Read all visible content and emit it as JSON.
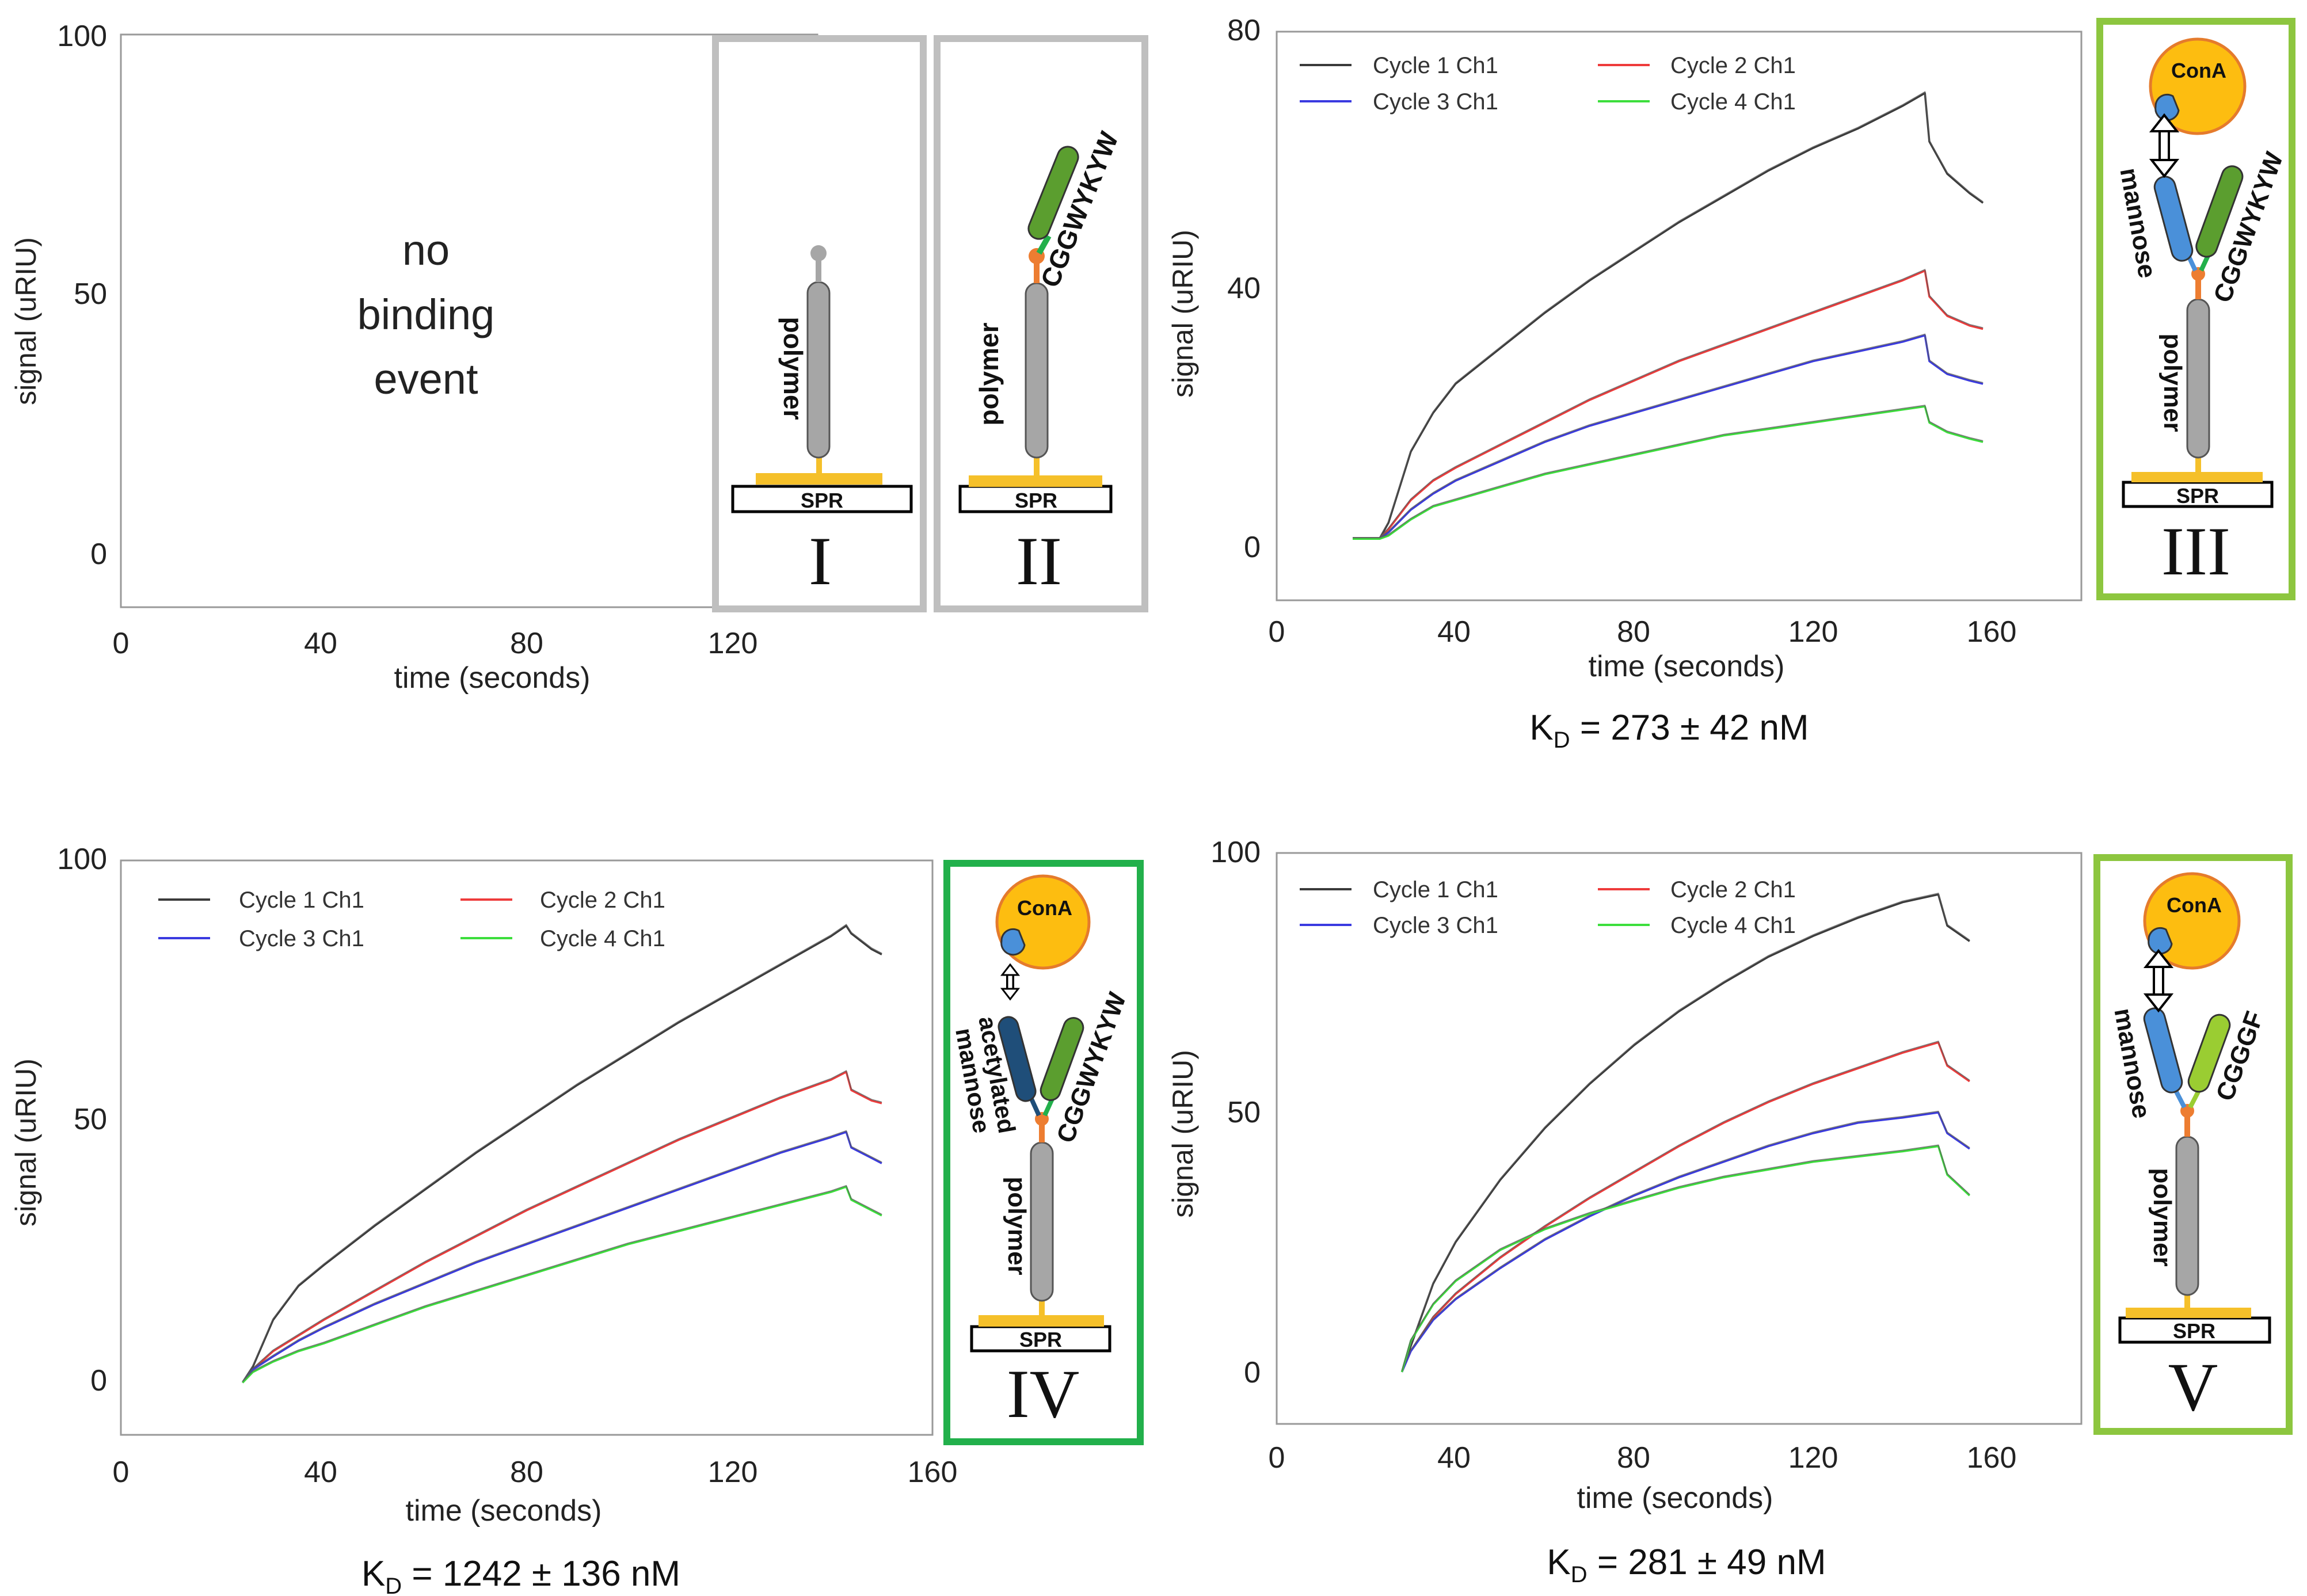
{
  "colors": {
    "cycle1": "#3a3a3a",
    "cycle2": "#ee3b3b",
    "cycle3": "#3a3ae0",
    "cycle4": "#3cde3c",
    "fit": "#5a5a5a",
    "gray_box": "#bfbfbf",
    "green_light": "#8dc63f",
    "green_dark": "#22b04b",
    "gold": "#f5c02a",
    "conA": "#fdbd10",
    "conA_edge": "#e57b2c",
    "mannose": "#4a90d9",
    "acetylated": "#1f4e79",
    "peptide": "#5b9e2f",
    "peptide_light": "#9acd32",
    "linker": "#ed7d31",
    "polymer": "#a6a6a6"
  },
  "chart_data": [
    {
      "id": "panel-1",
      "type": "line",
      "title": "",
      "xlabel": "time (seconds)",
      "ylabel": "signal (uRIU)",
      "xlim": [
        0,
        160
      ],
      "ylim": [
        -10,
        100
      ],
      "xticks": [
        "0",
        "40",
        "80",
        "120"
      ],
      "yticks": [
        "0",
        "50",
        "100"
      ],
      "annotation": [
        "no",
        "binding",
        "event"
      ],
      "series": []
    },
    {
      "id": "panel-3",
      "type": "line",
      "title": "",
      "xlabel": "time (seconds)",
      "ylabel": "signal (uRIU)",
      "xlim": [
        0,
        180
      ],
      "ylim": [
        -8,
        80
      ],
      "xticks": [
        "0",
        "40",
        "80",
        "120",
        "160"
      ],
      "yticks": [
        "0",
        "40",
        "80"
      ],
      "kd_prefix": "K",
      "kd_sub": "D",
      "kd_value": " = 273 ± 42 nM",
      "x": [
        17,
        23,
        25,
        30,
        35,
        40,
        50,
        60,
        70,
        80,
        90,
        100,
        110,
        120,
        130,
        140,
        145,
        146,
        150,
        155,
        158
      ],
      "series": [
        {
          "name": "Cycle 1 Ch1",
          "color": "cycle1",
          "values": [
            1.5,
            1.5,
            4,
            15,
            21,
            25.5,
            31,
            36.5,
            41.5,
            46,
            50.5,
            54.5,
            58.5,
            62,
            65,
            68.5,
            70.5,
            63,
            58,
            55,
            53.5
          ]
        },
        {
          "name": "Cycle 2 Ch1",
          "color": "cycle2",
          "values": [
            1.5,
            1.5,
            3,
            7.5,
            10.5,
            12.5,
            16,
            19.5,
            23,
            26,
            29,
            31.5,
            34,
            36.5,
            39,
            41.5,
            43,
            39,
            36,
            34.5,
            34
          ]
        },
        {
          "name": "Cycle 3 Ch1",
          "color": "cycle3",
          "values": [
            1.5,
            1.5,
            2.5,
            6,
            8.5,
            10.5,
            13.5,
            16.5,
            19,
            21,
            23,
            25,
            27,
            29,
            30.5,
            32,
            33,
            29,
            27,
            26,
            25.5
          ]
        },
        {
          "name": "Cycle 4 Ch1",
          "color": "cycle4",
          "values": [
            1.5,
            1.5,
            2,
            4.5,
            6.5,
            7.5,
            9.5,
            11.5,
            13,
            14.5,
            16,
            17.5,
            18.5,
            19.5,
            20.5,
            21.5,
            22,
            19.5,
            18,
            17,
            16.5
          ]
        }
      ]
    },
    {
      "id": "panel-4",
      "type": "line",
      "title": "",
      "xlabel": "time (seconds)",
      "ylabel": "signal (uRIU)",
      "xlim": [
        0,
        160
      ],
      "ylim": [
        -10,
        100
      ],
      "xticks": [
        "0",
        "40",
        "80",
        "120",
        "160"
      ],
      "yticks": [
        "0",
        "50",
        "100"
      ],
      "kd_prefix": "K",
      "kd_sub": "D",
      "kd_value": " = 1242 ± 136 nM",
      "x": [
        24,
        26,
        30,
        35,
        40,
        50,
        60,
        70,
        80,
        90,
        100,
        110,
        120,
        130,
        140,
        143,
        144,
        148,
        150
      ],
      "series": [
        {
          "name": "Cycle 1 Ch1",
          "color": "cycle1",
          "values": [
            0,
            3,
            12,
            18.5,
            22.5,
            30,
            37,
            44,
            50.5,
            57,
            63,
            69,
            74.5,
            80,
            85.5,
            87.5,
            86,
            83,
            82
          ]
        },
        {
          "name": "Cycle 2 Ch1",
          "color": "cycle2",
          "values": [
            0,
            2.5,
            6,
            9,
            12,
            17.5,
            23,
            28,
            33,
            37.5,
            42,
            46.5,
            50.5,
            54.5,
            58,
            59.5,
            56,
            54,
            53.5
          ]
        },
        {
          "name": "Cycle 3 Ch1",
          "color": "cycle3",
          "values": [
            0,
            2.5,
            5,
            8,
            10.5,
            15,
            19,
            23,
            26.5,
            30,
            33.5,
            37,
            40.5,
            44,
            47,
            48,
            45,
            43,
            42
          ]
        },
        {
          "name": "Cycle 4 Ch1",
          "color": "cycle4",
          "values": [
            0,
            2,
            4,
            6,
            7.5,
            11,
            14.5,
            17.5,
            20.5,
            23.5,
            26.5,
            29,
            31.5,
            34,
            36.5,
            37.5,
            35,
            33,
            32
          ]
        }
      ]
    },
    {
      "id": "panel-5",
      "type": "line",
      "title": "",
      "xlabel": "time (seconds)",
      "ylabel": "signal (uRIU)",
      "xlim": [
        0,
        180
      ],
      "ylim": [
        -10,
        100
      ],
      "xticks": [
        "0",
        "40",
        "80",
        "120",
        "160"
      ],
      "yticks": [
        "0",
        "50",
        "100"
      ],
      "kd_prefix": "K",
      "kd_sub": "D",
      "kd_value": " = 281 ± 49 nM",
      "x": [
        28,
        30,
        35,
        40,
        50,
        60,
        70,
        80,
        90,
        100,
        110,
        120,
        130,
        140,
        148,
        150,
        155
      ],
      "series": [
        {
          "name": "Cycle 1 Ch1",
          "color": "cycle1",
          "values": [
            0,
            5,
            17,
            25,
            37,
            47,
            55.5,
            63,
            69.5,
            75,
            80,
            84,
            87.5,
            90.5,
            92,
            86,
            83
          ]
        },
        {
          "name": "Cycle 2 Ch1",
          "color": "cycle2",
          "values": [
            0,
            4,
            10.5,
            15,
            22,
            28,
            33.5,
            38.5,
            43.5,
            48,
            52,
            55.5,
            58.5,
            61.5,
            63.5,
            59,
            56
          ]
        },
        {
          "name": "Cycle 3 Ch1",
          "color": "cycle3",
          "values": [
            0,
            4,
            10,
            14,
            20,
            25.5,
            30,
            34,
            37.5,
            40.5,
            43.5,
            46,
            48,
            49,
            50,
            46,
            43
          ]
        },
        {
          "name": "Cycle 4 Ch1",
          "color": "cycle4",
          "values": [
            0,
            6,
            13,
            17.5,
            23.5,
            27.5,
            30.5,
            33,
            35.5,
            37.5,
            39,
            40.5,
            41.5,
            42.5,
            43.5,
            38,
            34
          ]
        }
      ]
    }
  ],
  "schematics": {
    "I": {
      "numeral": "I",
      "polymer": "polymer",
      "spr": "SPR"
    },
    "II": {
      "numeral": "II",
      "polymer": "polymer",
      "spr": "SPR",
      "peptide": "CGGWYKYW"
    },
    "III": {
      "numeral": "III",
      "polymer": "polymer",
      "spr": "SPR",
      "peptide": "CGGWYKYW",
      "sugar": "mannose",
      "protein": "ConA"
    },
    "IV": {
      "numeral": "IV",
      "polymer": "polymer",
      "spr": "SPR",
      "peptide": "CGGWYKYW",
      "sugar_line1": "acetylated",
      "sugar_line2": "mannose",
      "protein": "ConA"
    },
    "V": {
      "numeral": "V",
      "polymer": "polymer",
      "spr": "SPR",
      "peptide": "CGGGF",
      "sugar": "mannose",
      "protein": "ConA"
    }
  }
}
